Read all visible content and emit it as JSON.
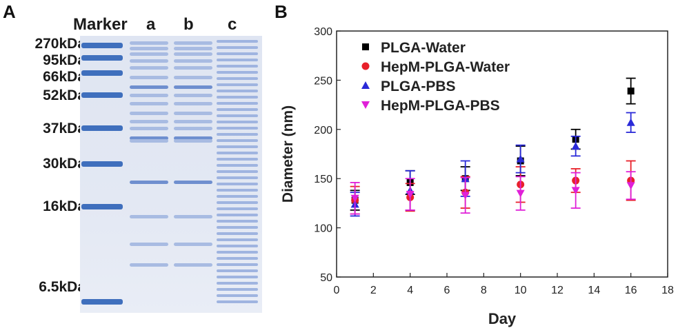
{
  "panel_a": {
    "letter": "A",
    "lanes": [
      "Marker",
      "a",
      "b",
      "c"
    ],
    "markers": [
      "270kDa",
      "95kDa",
      "66kDa",
      "52kDa",
      "37kDa",
      "30kDa",
      "16kDa",
      "6.5kDa"
    ]
  },
  "panel_b": {
    "letter": "B"
  },
  "chart_data": {
    "type": "scatter",
    "xlabel": "Day",
    "ylabel": "Diameter (nm)",
    "xlim": [
      0,
      18
    ],
    "ylim": [
      50,
      300
    ],
    "xticks": [
      0,
      2,
      4,
      6,
      8,
      10,
      12,
      14,
      16,
      18
    ],
    "yticks": [
      50,
      100,
      150,
      200,
      250,
      300
    ],
    "legend_position": "top-left",
    "grid": false,
    "series": [
      {
        "name": "PLGA-Water",
        "marker": "square",
        "color": "#000000",
        "x": [
          1,
          4,
          7,
          10,
          13,
          16
        ],
        "y": [
          128,
          146,
          150,
          168,
          190,
          239
        ],
        "err": [
          10,
          12,
          12,
          15,
          10,
          13
        ]
      },
      {
        "name": "HepM-PLGA-Water",
        "marker": "circle",
        "color": "#e8202a",
        "x": [
          1,
          4,
          7,
          10,
          13,
          16
        ],
        "y": [
          128,
          131,
          136,
          144,
          148,
          148
        ],
        "err": [
          14,
          14,
          16,
          18,
          12,
          20
        ]
      },
      {
        "name": "PLGA-PBS",
        "marker": "triangle-up",
        "color": "#2a2ad8",
        "x": [
          1,
          4,
          7,
          10,
          13,
          16
        ],
        "y": [
          124,
          138,
          150,
          170,
          183,
          207
        ],
        "err": [
          12,
          20,
          18,
          14,
          10,
          10
        ]
      },
      {
        "name": "HepM-PLGA-PBS",
        "marker": "triangle-down",
        "color": "#e020d8",
        "x": [
          1,
          4,
          7,
          10,
          13,
          16
        ],
        "y": [
          130,
          134,
          133,
          135,
          138,
          143
        ],
        "err": [
          16,
          16,
          18,
          17,
          18,
          14
        ]
      }
    ]
  }
}
